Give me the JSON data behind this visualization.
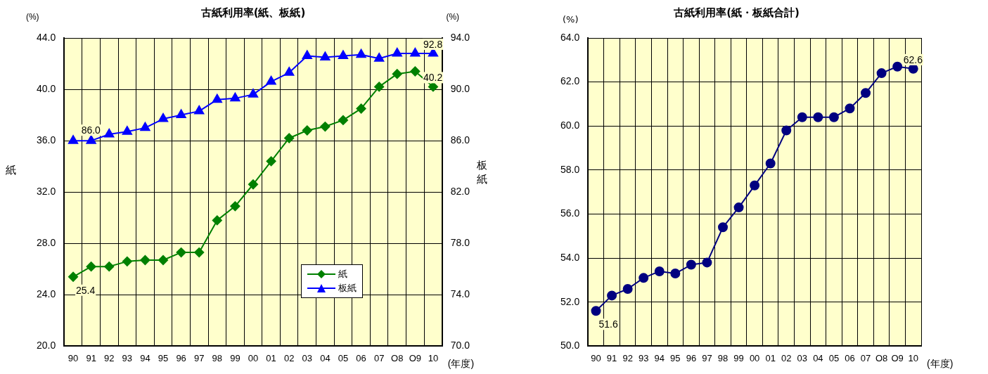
{
  "chart_data": [
    {
      "type": "line",
      "title": "古紙利用率(紙、板紙)",
      "ylabel": "紙",
      "y2label": "板紙",
      "xlabel": "(年度)",
      "annotations": [
        "(%)",
        "(%)"
      ],
      "categories": [
        "90",
        "91",
        "92",
        "93",
        "94",
        "95",
        "96",
        "97",
        "98",
        "99",
        "00",
        "01",
        "02",
        "03",
        "04",
        "05",
        "06",
        "07",
        "O8",
        "O9",
        "10"
      ],
      "series": [
        {
          "name": "紙",
          "color": "#008000",
          "marker": "diamond",
          "values": [
            25.4,
            26.2,
            26.2,
            26.6,
            26.7,
            26.7,
            27.3,
            27.3,
            29.8,
            30.9,
            32.6,
            34.4,
            36.2,
            36.8,
            37.1,
            37.6,
            38.5,
            40.2,
            41.2,
            41.4,
            40.2
          ],
          "value_labels": [
            "25.4",
            null,
            null,
            null,
            null,
            null,
            null,
            null,
            null,
            null,
            null,
            null,
            null,
            null,
            null,
            null,
            null,
            null,
            null,
            null,
            "40.2"
          ]
        },
        {
          "name": "板紙",
          "color": "#0000ff",
          "marker": "triangle",
          "axis": "y2",
          "values": [
            86.0,
            86.0,
            86.5,
            86.7,
            87.0,
            87.7,
            88.0,
            88.3,
            89.2,
            89.3,
            89.6,
            90.6,
            91.3,
            92.6,
            92.5,
            92.6,
            92.7,
            92.4,
            92.8,
            92.8,
            92.8
          ],
          "value_labels": [
            null,
            "86.0",
            null,
            null,
            null,
            null,
            null,
            null,
            null,
            null,
            null,
            null,
            null,
            null,
            null,
            null,
            null,
            null,
            null,
            null,
            "92.8"
          ]
        }
      ],
      "ylim": [
        20,
        44
      ],
      "yticks": [
        {
          "value": 20,
          "label": "20.0"
        },
        {
          "value": 24,
          "label": "24.0"
        },
        {
          "value": 28,
          "label": "28.0"
        },
        {
          "value": 32,
          "label": "32.0"
        },
        {
          "value": 36,
          "label": "36.0"
        },
        {
          "value": 40,
          "label": "40.0"
        },
        {
          "value": 44,
          "label": "44.0"
        }
      ],
      "y2lim": [
        70,
        94
      ],
      "y2ticks": [
        {
          "value": 70,
          "label": "70.0"
        },
        {
          "value": 74,
          "label": "74.0"
        },
        {
          "value": 78,
          "label": "78.0"
        },
        {
          "value": 82,
          "label": "82.0"
        },
        {
          "value": 86,
          "label": "86.0"
        },
        {
          "value": 90,
          "label": "90.0"
        },
        {
          "value": 94,
          "label": "94.0"
        }
      ],
      "grid": true,
      "legend": "bottom right"
    },
    {
      "type": "line",
      "title": "古紙利用率(紙・板紙合計)",
      "ylabel": "(%)",
      "xlabel": "(年度)",
      "categories": [
        "90",
        "91",
        "92",
        "93",
        "94",
        "95",
        "96",
        "97",
        "98",
        "99",
        "00",
        "01",
        "02",
        "03",
        "04",
        "05",
        "06",
        "07",
        "O8",
        "O9",
        "10"
      ],
      "series": [
        {
          "color": "#000080",
          "marker": "circle",
          "values": [
            51.6,
            52.3,
            52.6,
            53.1,
            53.4,
            53.3,
            53.7,
            53.8,
            55.4,
            56.3,
            57.3,
            58.3,
            59.8,
            60.4,
            60.4,
            60.4,
            60.8,
            61.5,
            62.4,
            62.7,
            62.6
          ],
          "value_labels": [
            "51.6",
            null,
            null,
            null,
            null,
            null,
            null,
            null,
            null,
            null,
            null,
            null,
            null,
            null,
            null,
            null,
            null,
            null,
            null,
            null,
            "62.6"
          ]
        }
      ],
      "ylim": [
        50,
        64
      ],
      "yticks": [
        {
          "value": 50,
          "label": "50.0"
        },
        {
          "value": 52,
          "label": "52.0"
        },
        {
          "value": 54,
          "label": "54.0"
        },
        {
          "value": 56,
          "label": "56.0"
        },
        {
          "value": 58,
          "label": "58.0"
        },
        {
          "value": 60,
          "label": "60.0"
        },
        {
          "value": 62,
          "label": "62.0"
        },
        {
          "value": 64,
          "label": "64.0"
        }
      ],
      "grid": true,
      "legend": false
    }
  ]
}
